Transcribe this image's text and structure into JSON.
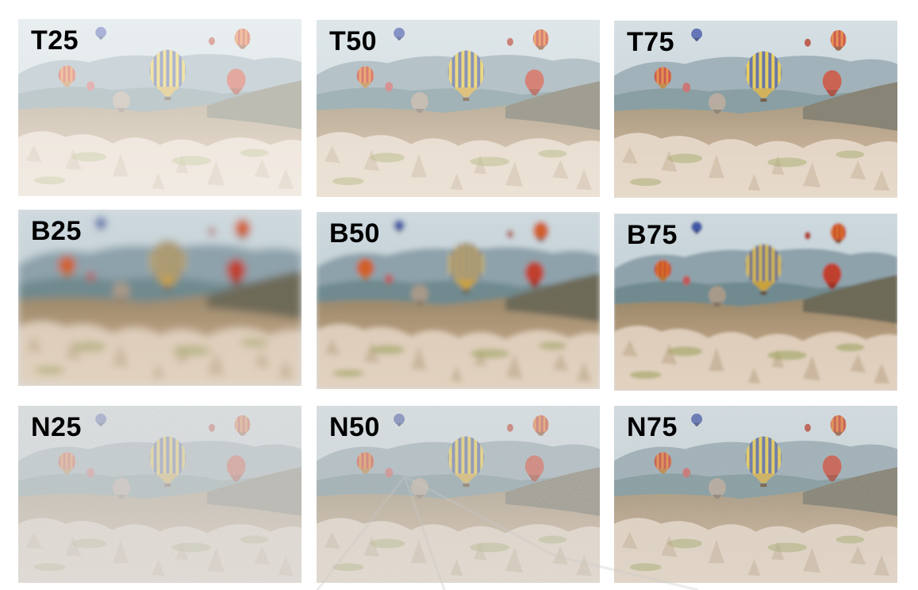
{
  "panels": [
    {
      "label": "T25",
      "effect": "transparency",
      "level": 25
    },
    {
      "label": "T50",
      "effect": "transparency",
      "level": 50
    },
    {
      "label": "T75",
      "effect": "transparency",
      "level": 75
    },
    {
      "label": "B25",
      "effect": "blur",
      "level": 25
    },
    {
      "label": "B50",
      "effect": "blur",
      "level": 50
    },
    {
      "label": "B75",
      "effect": "blur",
      "level": 75
    },
    {
      "label": "N25",
      "effect": "noise",
      "level": 25
    },
    {
      "label": "N50",
      "effect": "noise",
      "level": 50
    },
    {
      "label": "N75",
      "effect": "noise",
      "level": 75
    }
  ],
  "colors": {
    "sky": "#c9d6dc",
    "hills": "#7f95a0",
    "valley": "#a88c6e",
    "rock": "#d9c9b5",
    "balloon_yellow": "#e3c53c",
    "balloon_blue": "#45579a",
    "balloon_red": "#c0392b",
    "balloon_orange": "#e07b2c"
  }
}
